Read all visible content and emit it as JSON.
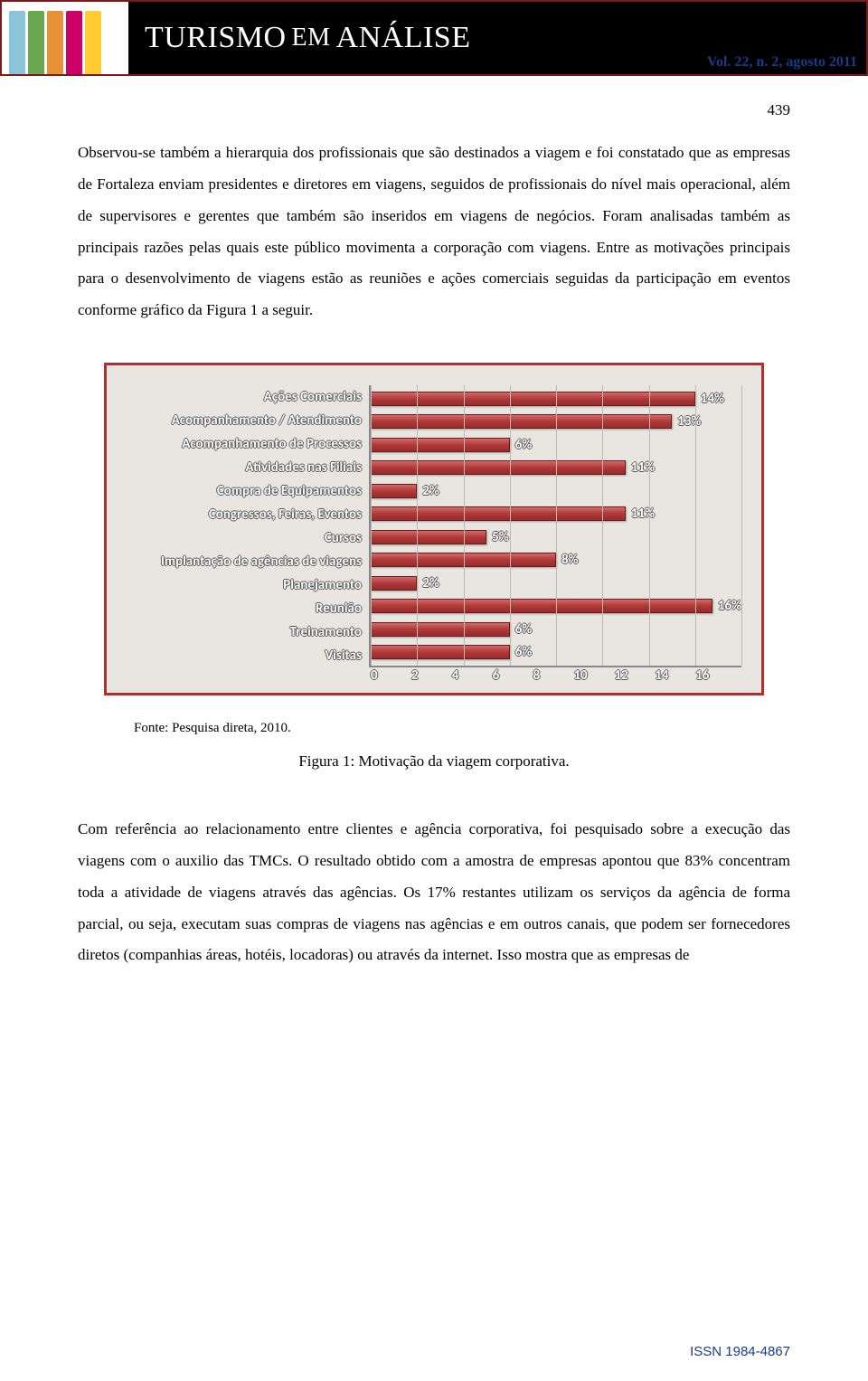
{
  "banner": {
    "title_part1": "TURISMO",
    "title_part2": "EM",
    "title_part3": "ANÁLISE",
    "volume": "Vol. 22, n. 2, agosto 2011",
    "book_colors": [
      "#8bc4d8",
      "#6aa84f",
      "#e69138",
      "#cc0066",
      "#ffcc33"
    ]
  },
  "page_number": "439",
  "paragraph1": "Observou-se também a hierarquia dos profissionais que são destinados a viagem e foi constatado que as empresas de Fortaleza enviam presidentes e diretores em viagens, seguidos de profissionais do nível mais operacional, além de supervisores e gerentes que também são inseridos em viagens de negócios. Foram analisadas também as principais razões pelas quais este público movimenta a corporação com viagens. Entre as motivações principais para o desenvolvimento de viagens estão as reuniões e ações comerciais seguidas da participação em eventos conforme gráfico da Figura 1 a seguir.",
  "chart": {
    "type": "bar-horizontal",
    "border_color": "#b03030",
    "background_color": "#e9e6e1",
    "bar_color_gradient": [
      "#d46a6a",
      "#b03838",
      "#972c2c"
    ],
    "bar_border_color": "#6a1a1a",
    "grid_color": "#bfb9af",
    "axis_color": "#888888",
    "label_color": "#ffffff",
    "label_fontsize": 15,
    "label_fontweight": "700",
    "xmax": 16,
    "xtick_step": 2,
    "xticks": [
      "0",
      "2",
      "4",
      "6",
      "8",
      "10",
      "12",
      "14",
      "16"
    ],
    "categories": [
      "Ações Comerciais",
      "Acompanhamento / Atendimento",
      "Acompanhamento de Processos",
      "Atividades nas Filiais",
      "Compra de Equipamentos",
      "Congressos, Feiras, Eventos",
      "Cursos",
      "Implantação de agências de viagens",
      "Planejamento",
      "Reunião",
      "Treinamento",
      "Visitas"
    ],
    "values": [
      14,
      13,
      6,
      11,
      2,
      11,
      5,
      8,
      2,
      16,
      6,
      6
    ],
    "value_labels": [
      "14%",
      "13%",
      "6%",
      "11%",
      "2%",
      "11%",
      "5%",
      "8%",
      "2%",
      "16%",
      "6%",
      "6%"
    ]
  },
  "source": "Fonte: Pesquisa direta, 2010.",
  "figure_caption": "Figura 1: Motivação da viagem corporativa.",
  "paragraph2": "Com referência ao relacionamento entre clientes e agência corporativa, foi pesquisado sobre a execução das viagens com o auxilio das TMCs. O resultado obtido com a amostra de empresas apontou que 83% concentram toda a atividade de viagens através das agências. Os 17% restantes utilizam os serviços da agência de forma parcial, ou seja, executam suas compras de viagens nas agências e em outros canais, que podem ser fornecedores diretos (companhias áreas, hotéis, locadoras) ou através da internet. Isso mostra que as empresas de",
  "issn": "ISSN 1984-4867"
}
